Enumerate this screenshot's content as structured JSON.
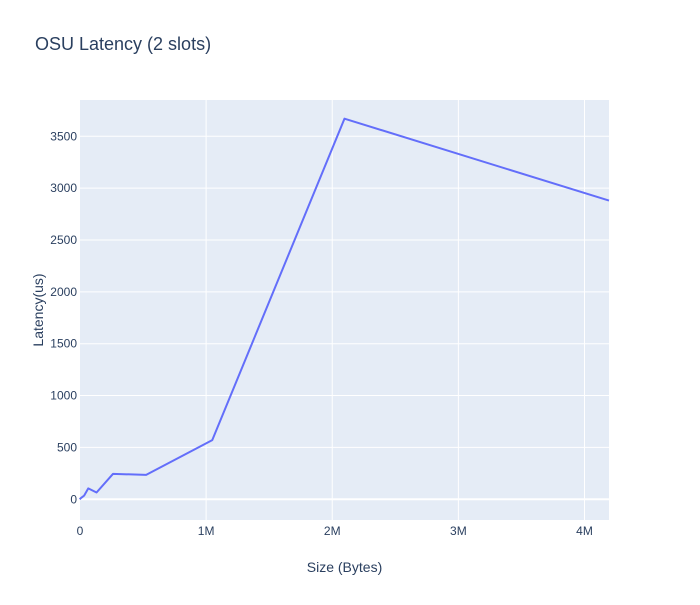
{
  "chart_data": {
    "type": "line",
    "title": "OSU Latency (2 slots)",
    "xlabel": "Size (Bytes)",
    "ylabel": "Latency(us)",
    "xlim": [
      0,
      4194304
    ],
    "ylim": [
      -200,
      3850
    ],
    "grid": true,
    "x_ticks": [
      {
        "value": 0,
        "label": "0"
      },
      {
        "value": 1000000,
        "label": "1M"
      },
      {
        "value": 2000000,
        "label": "2M"
      },
      {
        "value": 3000000,
        "label": "3M"
      },
      {
        "value": 4000000,
        "label": "4M"
      }
    ],
    "y_ticks": [
      {
        "value": 0,
        "label": "0"
      },
      {
        "value": 500,
        "label": "500"
      },
      {
        "value": 1000,
        "label": "1000"
      },
      {
        "value": 1500,
        "label": "1500"
      },
      {
        "value": 2000,
        "label": "2000"
      },
      {
        "value": 2500,
        "label": "2500"
      },
      {
        "value": 3000,
        "label": "3000"
      },
      {
        "value": 3500,
        "label": "3500"
      }
    ],
    "colors": {
      "line": "#636efa",
      "plot_bg": "#e5ecf6",
      "grid": "#ffffff",
      "text": "#2a3f5f"
    },
    "series": [
      {
        "x": [
          0,
          1,
          2,
          4,
          8,
          16,
          32,
          64,
          128,
          256,
          512,
          1024,
          2048,
          4096,
          8192,
          16384,
          32768,
          65536,
          131072,
          262144,
          524288,
          1048576,
          2097152,
          4194304
        ],
        "y": [
          1,
          1,
          1,
          1,
          1,
          1,
          1,
          2,
          2,
          2,
          3,
          4,
          5,
          8,
          12,
          20,
          35,
          105,
          65,
          245,
          235,
          570,
          3670,
          2880
        ]
      }
    ]
  }
}
